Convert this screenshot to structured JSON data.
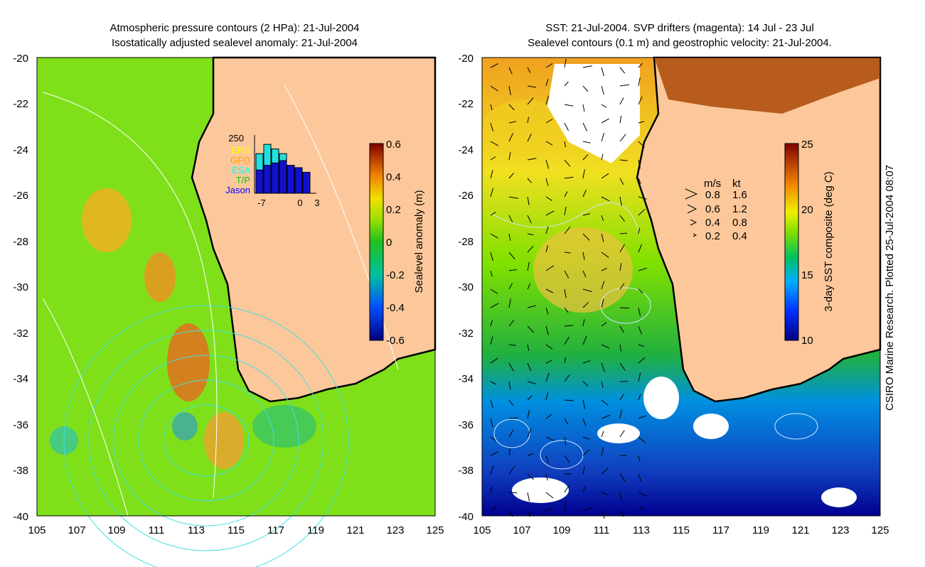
{
  "left": {
    "title_line1": "Atmospheric pressure contours (2 HPa): 21-Jul-2004",
    "title_line2": "Isostatically adjusted sealevel anomaly: 21-Jul-2004",
    "colorbar_label": "Sealevel anomaly (m)",
    "colorbar_ticks": [
      "0.6",
      "0.4",
      "0.2",
      "0",
      "-0.2",
      "-0.4",
      "-0.6"
    ],
    "inset": {
      "ymax_label": "250",
      "legend": [
        "ERS",
        "GFO",
        "ESA",
        "T/P",
        "Jason"
      ],
      "legend_colors": [
        "#ffff00",
        "#ff9900",
        "#00ffff",
        "#00cc00",
        "#0000ff"
      ],
      "x_labels": [
        "-7",
        "0",
        "3"
      ],
      "bars_cyan": [
        170,
        210,
        190,
        170
      ],
      "bars_blue": [
        100,
        120,
        130,
        140,
        120,
        110,
        90
      ]
    }
  },
  "right": {
    "title_line1": "SST: 21-Jul-2004. SVP drifters (magenta): 14 Jul - 23 Jul",
    "title_line2": "Sealevel contours (0.1 m) and geostrophic velocity: 21-Jul-2004.",
    "colorbar_label": "3-day SST composite (deg C)",
    "colorbar_ticks": [
      "25",
      "20",
      "15",
      "10"
    ],
    "velocity_legend": {
      "header_ms": "m/s",
      "header_kt": "kt",
      "rows": [
        {
          "ms": "0.8",
          "kt": "1.6"
        },
        {
          "ms": "0.6",
          "kt": "1.2"
        },
        {
          "ms": "0.4",
          "kt": "0.8"
        },
        {
          "ms": "0.2",
          "kt": "0.4"
        }
      ]
    }
  },
  "axes": {
    "lat_ticks": [
      "-20",
      "-22",
      "-24",
      "-26",
      "-28",
      "-30",
      "-32",
      "-34",
      "-36",
      "-38",
      "-40"
    ],
    "lon_ticks": [
      "105",
      "107",
      "109",
      "111",
      "113",
      "115",
      "117",
      "119",
      "121",
      "123",
      "125"
    ]
  },
  "credit": "CSIRO Marine Research. Plotted 25-Jul-2004 08:07",
  "colors": {
    "land": "#fcc89b",
    "ocean_left": "#7fe01a",
    "ocean_right_warm": "#f0c020",
    "ocean_right_cold": "#1040c0"
  }
}
